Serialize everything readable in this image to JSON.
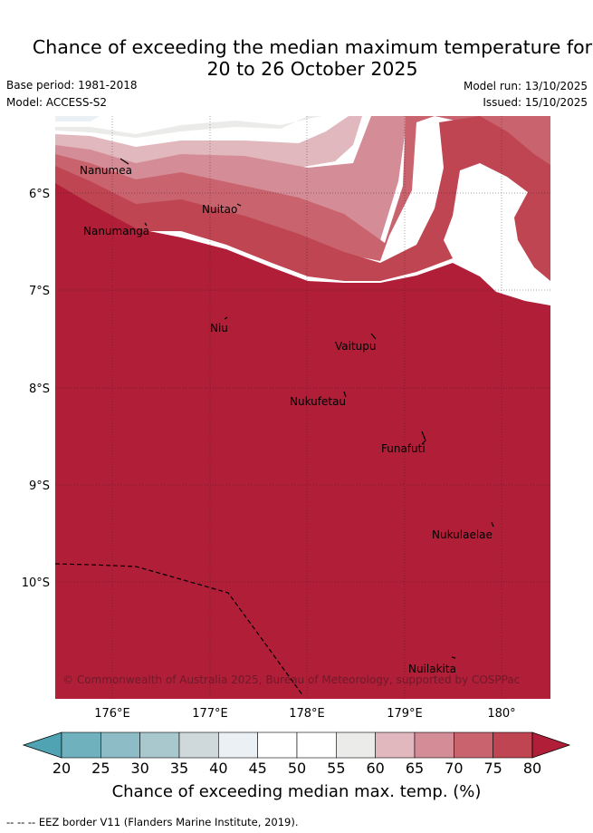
{
  "title": {
    "line1": "Chance of exceeding the median maximum temperature for",
    "line2": "20 to 26 October 2025"
  },
  "meta": {
    "base_period": "Base period: 1981-2018",
    "model": "Model: ACCESS-S2",
    "model_run": "Model run: 13/10/2025",
    "issued": "Issued: 15/10/2025"
  },
  "axes": {
    "lat_labels": [
      "6°S",
      "7°S",
      "8°S",
      "9°S",
      "10°S"
    ],
    "lon_labels": [
      "176°E",
      "177°E",
      "178°E",
      "179°E",
      "180°"
    ]
  },
  "places": [
    "Nanumea",
    "Nuitao",
    "Nanumanga",
    "Niu",
    "Vaitupu",
    "Nukufetau",
    "Funafuti",
    "Nukulaelae",
    "Nuilakita"
  ],
  "copyright": "© Commonwealth of Australia 2025, Bureau of Meteorology, supported by COSPPac",
  "colorbar": {
    "ticks": [
      "20",
      "25",
      "30",
      "35",
      "40",
      "45",
      "50",
      "55",
      "60",
      "65",
      "70",
      "75",
      "80"
    ],
    "colors": [
      "#4fa3b3",
      "#6fb1bd",
      "#8dbcc6",
      "#a9c8cd",
      "#cfd9dc",
      "#eaf0f3",
      "#ffffff",
      "#ffffff",
      "#ebebe9",
      "#e1b8be",
      "#d48d97",
      "#c9646f",
      "#bf4552",
      "#b01e38"
    ],
    "label": "Chance of exceeding median max. temp. (%)"
  },
  "footer": "-- -- -- EEZ border V11 (Flanders Marine Institute, 2019)."
}
